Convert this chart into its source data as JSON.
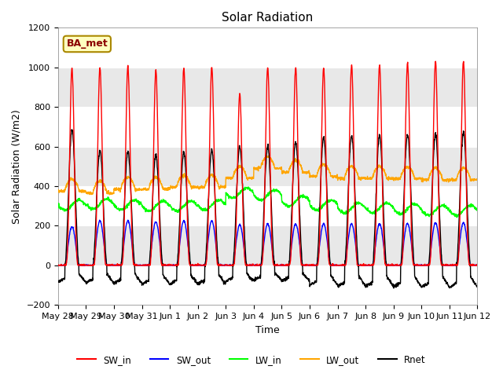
{
  "title": "Solar Radiation",
  "xlabel": "Time",
  "ylabel": "Solar Radiation (W/m2)",
  "ylim": [
    -200,
    1200
  ],
  "yticks": [
    -200,
    0,
    200,
    400,
    600,
    800,
    1000,
    1200
  ],
  "x_labels": [
    "May 28",
    "May 29",
    "May 30",
    "May 31",
    "Jun 1",
    "Jun 2",
    "Jun 3",
    "Jun 4",
    "Jun 5",
    "Jun 6",
    "Jun 7",
    "Jun 8",
    "Jun 9",
    "Jun 10",
    "Jun 11",
    "Jun 12"
  ],
  "n_days": 15,
  "legend_entries": [
    "SW_in",
    "SW_out",
    "LW_in",
    "LW_out",
    "Rnet"
  ],
  "annotation_text": "BA_met",
  "annotation_bbox_facecolor": "#FFFFC0",
  "annotation_bbox_edgecolor": "#AA8800",
  "plot_bg_color": "#E8E8E8",
  "fig_bg_color": "#FFFFFF",
  "sw_in_peaks": [
    995,
    1000,
    1005,
    985,
    995,
    1000,
    870,
    1000,
    1000,
    995,
    1010,
    1010,
    1020,
    1030,
    1030
  ],
  "sw_out_peaks": [
    195,
    225,
    225,
    220,
    225,
    225,
    205,
    210,
    210,
    210,
    210,
    210,
    212,
    215,
    215
  ],
  "lw_in_base": [
    305,
    310,
    305,
    300,
    300,
    305,
    365,
    355,
    325,
    305,
    290,
    290,
    285,
    278,
    278
  ],
  "lw_out_base": [
    375,
    365,
    385,
    385,
    395,
    395,
    440,
    490,
    470,
    450,
    440,
    440,
    438,
    432,
    432
  ],
  "rnet_peaks": [
    680,
    580,
    575,
    555,
    570,
    580,
    600,
    600,
    620,
    645,
    655,
    660,
    660,
    665,
    670
  ],
  "rnet_night": [
    -85,
    -90,
    -90,
    -95,
    -95,
    -95,
    -80,
    -75,
    -80,
    -100,
    -105,
    -105,
    -108,
    -110,
    -110
  ]
}
